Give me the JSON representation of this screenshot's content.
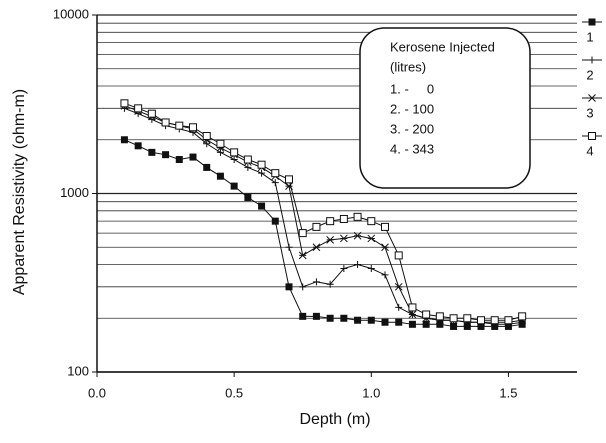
{
  "chart_data": {
    "type": "line",
    "xlabel": "Depth (m)",
    "ylabel": "Apparent Resistivity (ohm-m)",
    "x": [
      0.1,
      0.15,
      0.2,
      0.25,
      0.3,
      0.35,
      0.4,
      0.45,
      0.5,
      0.55,
      0.6,
      0.65,
      0.7,
      0.75,
      0.8,
      0.85,
      0.9,
      0.95,
      1.0,
      1.05,
      1.1,
      1.15,
      1.2,
      1.25,
      1.3,
      1.35,
      1.4,
      1.45,
      1.5,
      1.55
    ],
    "series": [
      {
        "name": "1",
        "color": "#111111",
        "marker": "square",
        "values": [
          2000,
          1850,
          1700,
          1650,
          1550,
          1600,
          1400,
          1250,
          1100,
          950,
          850,
          700,
          300,
          205,
          205,
          200,
          200,
          195,
          195,
          190,
          190,
          185,
          185,
          185,
          180,
          180,
          180,
          180,
          180,
          185
        ]
      },
      {
        "name": "2",
        "color": "#111111",
        "marker": "plus",
        "values": [
          3000,
          2800,
          2600,
          2400,
          2300,
          2200,
          1900,
          1700,
          1550,
          1400,
          1300,
          1150,
          500,
          300,
          320,
          310,
          380,
          400,
          380,
          350,
          230,
          210,
          200,
          195,
          195,
          190,
          190,
          185,
          185,
          190
        ]
      },
      {
        "name": "3",
        "color": "#111111",
        "marker": "star",
        "values": [
          3100,
          2900,
          2700,
          2500,
          2400,
          2300,
          2000,
          1800,
          1650,
          1500,
          1400,
          1250,
          1100,
          450,
          500,
          550,
          560,
          580,
          560,
          500,
          300,
          210,
          200,
          195,
          195,
          190,
          190,
          190,
          190,
          195
        ]
      },
      {
        "name": "4",
        "color": "#111111",
        "marker": "square-open",
        "values": [
          3200,
          3000,
          2800,
          2500,
          2400,
          2350,
          2100,
          1900,
          1700,
          1550,
          1450,
          1300,
          1200,
          600,
          650,
          700,
          720,
          740,
          700,
          650,
          450,
          230,
          210,
          205,
          200,
          200,
          195,
          195,
          195,
          205
        ]
      }
    ],
    "xlim": [
      0,
      1.75
    ],
    "xticks": [
      {
        "value": 0,
        "label": "0.0"
      },
      0.5,
      {
        "value": 1,
        "label": "1.0"
      },
      1.5
    ],
    "ylim": [
      100,
      10000
    ],
    "yticks": [
      100,
      1000,
      10000
    ],
    "yminor": [
      200,
      300,
      400,
      500,
      600,
      700,
      800,
      900,
      2000,
      3000,
      4000,
      5000,
      6000,
      7000,
      8000,
      9000
    ],
    "ylog": true,
    "grid": true,
    "legend": "right",
    "annotation": {
      "title": "Kerosene Injected",
      "subtitle": "(litres)",
      "lines": [
        "1. -     0",
        "2. - 100",
        "3. - 200",
        "4. - 343"
      ]
    }
  }
}
